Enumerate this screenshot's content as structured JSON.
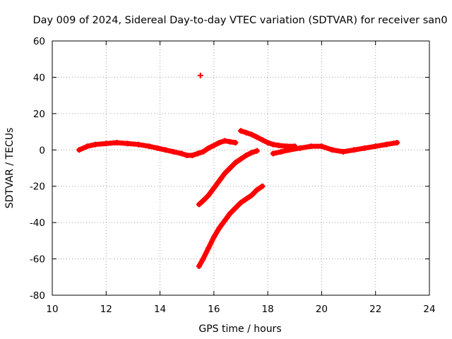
{
  "chart_data": {
    "type": "scatter",
    "title": "Day 009 of 2024, Sidereal Day-to-day VTEC variation (SDTVAR) for receiver san0",
    "xlabel": "GPS time / hours",
    "ylabel": "SDTVAR / TECUs",
    "xlim": [
      10,
      24
    ],
    "ylim": [
      -80,
      60
    ],
    "xticks": [
      10,
      12,
      14,
      16,
      18,
      20,
      22,
      24
    ],
    "yticks": [
      -80,
      -60,
      -40,
      -20,
      0,
      20,
      40,
      60
    ],
    "grid": true,
    "marker": "plus",
    "series_color": "#ff0000",
    "series": [
      {
        "name": "main-band-morning",
        "x": [
          11.0,
          11.3,
          11.6,
          12.0,
          12.4,
          12.8,
          13.2,
          13.6,
          13.9,
          14.2,
          14.5,
          14.8,
          15.0,
          15.2,
          15.4
        ],
        "y": [
          0,
          2,
          3,
          3.5,
          4,
          3.5,
          3,
          2,
          1,
          0,
          -1,
          -2,
          -3,
          -3,
          -2
        ]
      },
      {
        "name": "main-band-midday",
        "x": [
          15.4,
          15.6,
          15.8,
          16.0,
          16.2,
          16.4,
          16.6,
          16.8
        ],
        "y": [
          -2,
          -1,
          1,
          2.5,
          4,
          5,
          4.5,
          4
        ]
      },
      {
        "name": "descending-arc",
        "x": [
          17.0,
          17.2,
          17.4,
          17.6,
          17.8,
          18.0,
          18.2,
          18.4,
          18.7,
          19.0
        ],
        "y": [
          10.5,
          9.5,
          8.5,
          7,
          5.5,
          4,
          3,
          2.5,
          2,
          2
        ]
      },
      {
        "name": "main-band-evening",
        "x": [
          18.2,
          18.5,
          18.8,
          19.2,
          19.6,
          20.0,
          20.4,
          20.8,
          21.2,
          21.6,
          22.0,
          22.4,
          22.8
        ],
        "y": [
          -2,
          -1,
          0,
          1,
          2,
          2,
          0,
          -1,
          0,
          1,
          2,
          3,
          4
        ]
      },
      {
        "name": "rising-arc-upper",
        "x": [
          15.45,
          15.6,
          15.8,
          16.0,
          16.2,
          16.4,
          16.6,
          16.8,
          17.0,
          17.2,
          17.4,
          17.6
        ],
        "y": [
          -30,
          -28,
          -25,
          -21,
          -17,
          -13,
          -10,
          -7,
          -5,
          -3,
          -1.5,
          -0.5
        ]
      },
      {
        "name": "rising-arc-lower",
        "x": [
          15.45,
          15.6,
          15.8,
          16.0,
          16.2,
          16.4,
          16.6,
          16.8,
          17.0,
          17.2,
          17.4,
          17.6,
          17.8
        ],
        "y": [
          -64,
          -60,
          -54,
          -48,
          -43,
          -39,
          -35,
          -32,
          -29,
          -27,
          -25,
          -22,
          -20
        ]
      },
      {
        "name": "isolated-point",
        "x": [
          15.5
        ],
        "y": [
          41
        ]
      }
    ]
  }
}
